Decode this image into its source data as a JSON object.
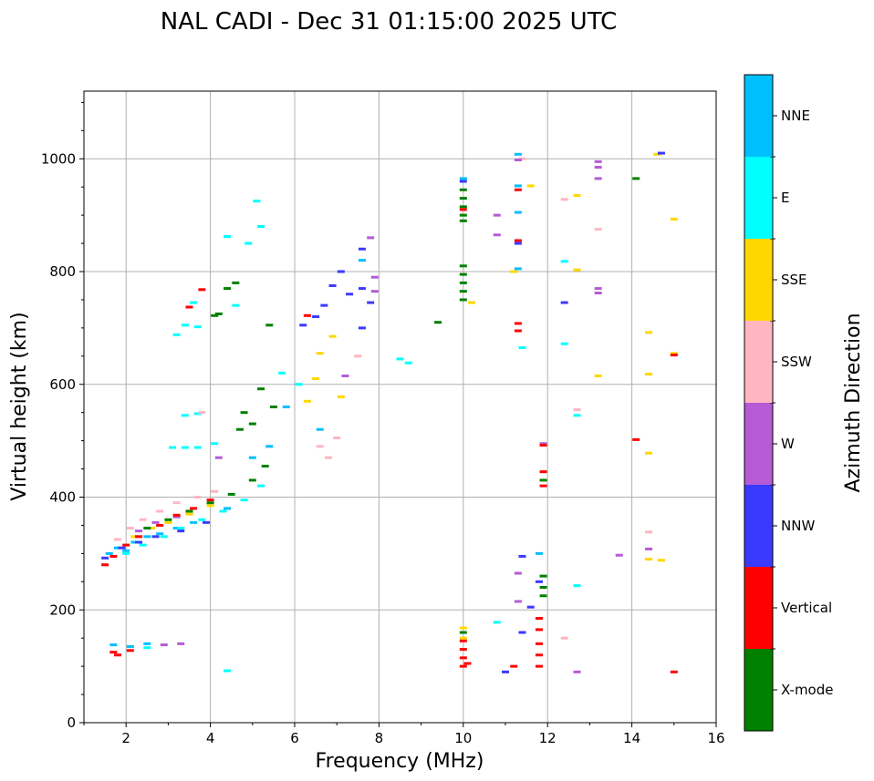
{
  "chart_data": {
    "type": "scatter",
    "title": "NAL CADI - Dec 31 01:15:00 2025 UTC",
    "xlabel": "Frequency (MHz)",
    "ylabel": "Virtual height (km)",
    "xlim": [
      1,
      16
    ],
    "ylim": [
      0,
      1120
    ],
    "xticks": [
      2,
      4,
      6,
      8,
      10,
      12,
      14,
      16
    ],
    "yticks": [
      0,
      200,
      400,
      600,
      800,
      1000
    ],
    "grid": true,
    "colorbar": {
      "label": "Azimuth Direction",
      "categories": [
        {
          "name": "X-mode",
          "color": "#008000"
        },
        {
          "name": "Vertical",
          "color": "#ff0000"
        },
        {
          "name": "NNW",
          "color": "#3a3aff"
        },
        {
          "name": "W",
          "color": "#b65ad6"
        },
        {
          "name": "SSW",
          "color": "#ffb6c1"
        },
        {
          "name": "SSE",
          "color": "#ffd700"
        },
        {
          "name": "E",
          "color": "#00ffff"
        },
        {
          "name": "NNE",
          "color": "#00bfff"
        }
      ]
    },
    "series": [
      {
        "name": "NNE",
        "points": [
          [
            1.6,
            300
          ],
          [
            1.8,
            310
          ],
          [
            2.0,
            305
          ],
          [
            2.2,
            320
          ],
          [
            2.5,
            330
          ],
          [
            2.8,
            335
          ],
          [
            3.2,
            345
          ],
          [
            3.6,
            355
          ],
          [
            4.4,
            380
          ],
          [
            1.7,
            138
          ],
          [
            2.1,
            135
          ],
          [
            2.5,
            140
          ],
          [
            5.0,
            470
          ],
          [
            5.4,
            490
          ],
          [
            5.8,
            560
          ],
          [
            6.6,
            520
          ],
          [
            7.6,
            820
          ],
          [
            10.0,
            965
          ],
          [
            11.3,
            1008
          ],
          [
            11.3,
            952
          ],
          [
            11.3,
            905
          ],
          [
            11.3,
            805
          ],
          [
            11.8,
            300
          ]
        ]
      },
      {
        "name": "E",
        "points": [
          [
            2.0,
            300
          ],
          [
            2.4,
            315
          ],
          [
            2.9,
            330
          ],
          [
            3.3,
            345
          ],
          [
            3.8,
            360
          ],
          [
            4.3,
            375
          ],
          [
            4.8,
            395
          ],
          [
            5.2,
            420
          ],
          [
            3.1,
            488
          ],
          [
            3.4,
            488
          ],
          [
            3.7,
            488
          ],
          [
            3.4,
            545
          ],
          [
            3.7,
            548
          ],
          [
            4.1,
            495
          ],
          [
            3.4,
            705
          ],
          [
            3.7,
            702
          ],
          [
            3.2,
            688
          ],
          [
            3.6,
            745
          ],
          [
            4.4,
            862
          ],
          [
            4.9,
            850
          ],
          [
            5.1,
            925
          ],
          [
            5.2,
            880
          ],
          [
            4.6,
            740
          ],
          [
            2.5,
            133
          ],
          [
            4.4,
            92
          ],
          [
            8.5,
            645
          ],
          [
            8.7,
            638
          ],
          [
            10.8,
            178
          ],
          [
            11.4,
            665
          ],
          [
            12.4,
            818
          ],
          [
            12.4,
            672
          ],
          [
            12.7,
            545
          ],
          [
            12.7,
            243
          ],
          [
            5.7,
            620
          ],
          [
            6.1,
            600
          ]
        ]
      },
      {
        "name": "SSE",
        "points": [
          [
            2.2,
            330
          ],
          [
            2.6,
            345
          ],
          [
            3.0,
            355
          ],
          [
            3.5,
            370
          ],
          [
            4.0,
            385
          ],
          [
            6.3,
            570
          ],
          [
            6.5,
            610
          ],
          [
            6.6,
            655
          ],
          [
            7.1,
            578
          ],
          [
            10.0,
            168
          ],
          [
            10.0,
            150
          ],
          [
            10.2,
            745
          ],
          [
            11.2,
            800
          ],
          [
            11.6,
            952
          ],
          [
            12.7,
            935
          ],
          [
            12.7,
            803
          ],
          [
            13.2,
            615
          ],
          [
            14.4,
            692
          ],
          [
            14.4,
            618
          ],
          [
            14.4,
            478
          ],
          [
            14.4,
            290
          ],
          [
            14.6,
            1008
          ],
          [
            15.0,
            893
          ],
          [
            15.0,
            655
          ],
          [
            14.7,
            288
          ],
          [
            6.9,
            685
          ]
        ]
      },
      {
        "name": "SSW",
        "points": [
          [
            1.8,
            325
          ],
          [
            2.1,
            345
          ],
          [
            2.4,
            360
          ],
          [
            2.8,
            375
          ],
          [
            3.2,
            390
          ],
          [
            3.7,
            400
          ],
          [
            4.1,
            410
          ],
          [
            3.8,
            550
          ],
          [
            6.6,
            490
          ],
          [
            6.8,
            470
          ],
          [
            7.0,
            505
          ],
          [
            12.4,
            928
          ],
          [
            12.4,
            150
          ],
          [
            12.7,
            555
          ],
          [
            13.2,
            875
          ],
          [
            14.4,
            338
          ],
          [
            11.4,
            1000
          ],
          [
            7.5,
            650
          ]
        ]
      },
      {
        "name": "W",
        "points": [
          [
            2.3,
            340
          ],
          [
            2.7,
            355
          ],
          [
            3.2,
            365
          ],
          [
            4.2,
            470
          ],
          [
            7.2,
            615
          ],
          [
            7.8,
            860
          ],
          [
            7.9,
            790
          ],
          [
            7.9,
            765
          ],
          [
            10.8,
            900
          ],
          [
            10.8,
            865
          ],
          [
            11.3,
            998
          ],
          [
            11.3,
            265
          ],
          [
            11.3,
            215
          ],
          [
            12.7,
            90
          ],
          [
            13.2,
            995
          ],
          [
            13.2,
            985
          ],
          [
            13.2,
            965
          ],
          [
            13.2,
            770
          ],
          [
            13.2,
            762
          ],
          [
            13.7,
            297
          ],
          [
            14.4,
            308
          ],
          [
            11.9,
            495
          ],
          [
            2.9,
            138
          ],
          [
            3.3,
            140
          ]
        ]
      },
      {
        "name": "NNW",
        "points": [
          [
            1.5,
            292
          ],
          [
            1.9,
            310
          ],
          [
            2.3,
            320
          ],
          [
            2.7,
            330
          ],
          [
            3.3,
            340
          ],
          [
            3.9,
            355
          ],
          [
            6.2,
            705
          ],
          [
            6.5,
            720
          ],
          [
            6.7,
            740
          ],
          [
            6.9,
            775
          ],
          [
            7.1,
            800
          ],
          [
            7.3,
            760
          ],
          [
            7.6,
            840
          ],
          [
            7.6,
            770
          ],
          [
            7.8,
            745
          ],
          [
            7.6,
            700
          ],
          [
            10.0,
            960
          ],
          [
            11.3,
            850
          ],
          [
            11.4,
            295
          ],
          [
            11.4,
            160
          ],
          [
            11.0,
            90
          ],
          [
            11.6,
            205
          ],
          [
            12.4,
            745
          ],
          [
            14.7,
            1010
          ],
          [
            11.8,
            250
          ]
        ]
      },
      {
        "name": "Vertical",
        "points": [
          [
            1.5,
            280
          ],
          [
            1.7,
            295
          ],
          [
            2.0,
            315
          ],
          [
            2.3,
            330
          ],
          [
            2.8,
            350
          ],
          [
            3.2,
            368
          ],
          [
            3.6,
            380
          ],
          [
            4.0,
            395
          ],
          [
            3.5,
            737
          ],
          [
            3.8,
            768
          ],
          [
            1.8,
            120
          ],
          [
            1.7,
            125
          ],
          [
            2.1,
            128
          ],
          [
            10.0,
            100
          ],
          [
            10.0,
            115
          ],
          [
            10.0,
            130
          ],
          [
            10.0,
            145
          ],
          [
            10.1,
            105
          ],
          [
            10.0,
            910
          ],
          [
            11.3,
            945
          ],
          [
            11.3,
            695
          ],
          [
            11.3,
            708
          ],
          [
            11.3,
            855
          ],
          [
            11.8,
            100
          ],
          [
            11.8,
            120
          ],
          [
            11.8,
            140
          ],
          [
            11.8,
            165
          ],
          [
            11.8,
            185
          ],
          [
            11.9,
            420
          ],
          [
            11.9,
            445
          ],
          [
            11.9,
            492
          ],
          [
            14.1,
            502
          ],
          [
            15.0,
            652
          ],
          [
            15.0,
            90
          ],
          [
            6.3,
            722
          ],
          [
            11.2,
            100
          ]
        ]
      },
      {
        "name": "X-mode",
        "points": [
          [
            2.5,
            345
          ],
          [
            3.0,
            360
          ],
          [
            3.5,
            375
          ],
          [
            4.0,
            390
          ],
          [
            4.5,
            405
          ],
          [
            5.0,
            430
          ],
          [
            5.3,
            455
          ],
          [
            4.7,
            520
          ],
          [
            4.8,
            550
          ],
          [
            5.0,
            530
          ],
          [
            5.5,
            560
          ],
          [
            4.2,
            725
          ],
          [
            4.4,
            770
          ],
          [
            4.6,
            780
          ],
          [
            5.4,
            705
          ],
          [
            4.1,
            722
          ],
          [
            5.2,
            592
          ],
          [
            10.0,
            945
          ],
          [
            10.0,
            930
          ],
          [
            10.0,
            915
          ],
          [
            10.0,
            900
          ],
          [
            10.0,
            890
          ],
          [
            10.0,
            810
          ],
          [
            10.0,
            795
          ],
          [
            10.0,
            780
          ],
          [
            10.0,
            765
          ],
          [
            10.0,
            750
          ],
          [
            10.0,
            160
          ],
          [
            9.4,
            710
          ],
          [
            14.1,
            965
          ],
          [
            11.9,
            225
          ],
          [
            11.9,
            240
          ],
          [
            11.9,
            260
          ],
          [
            11.9,
            430
          ]
        ]
      }
    ]
  }
}
